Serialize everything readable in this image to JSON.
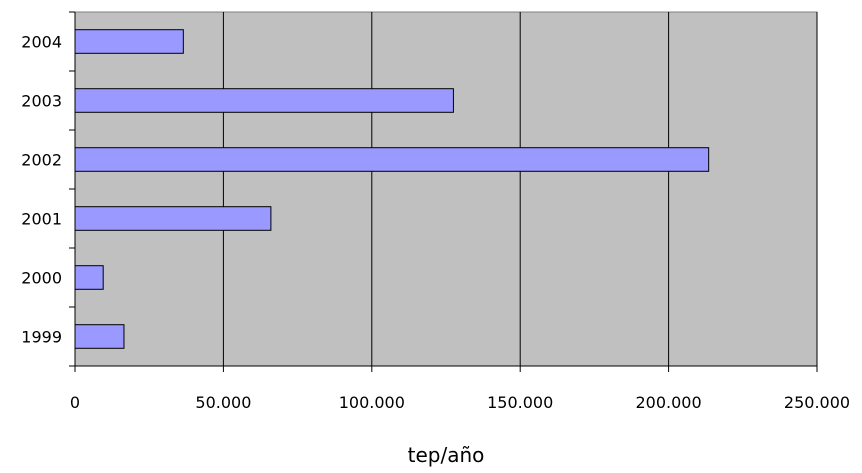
{
  "chart_data": {
    "type": "bar",
    "orientation": "horizontal",
    "categories": [
      "2004",
      "2003",
      "2002",
      "2001",
      "2000",
      "1999"
    ],
    "values": [
      36500,
      127500,
      213500,
      66000,
      9500,
      16500
    ],
    "xlabel": "tep/año",
    "ylabel": "",
    "xlim": [
      0,
      250000
    ],
    "x_ticks": [
      0,
      50000,
      100000,
      150000,
      200000,
      250000
    ],
    "x_tick_labels": [
      "0",
      "50.000",
      "100.000",
      "150.000",
      "200.000",
      "250.000"
    ],
    "grid": true,
    "legend": "none",
    "colors": {
      "bar_fill": "#9999ff",
      "bar_stroke": "#000000",
      "plot_background": "#c0c0c0",
      "gridline": "#000000"
    }
  }
}
